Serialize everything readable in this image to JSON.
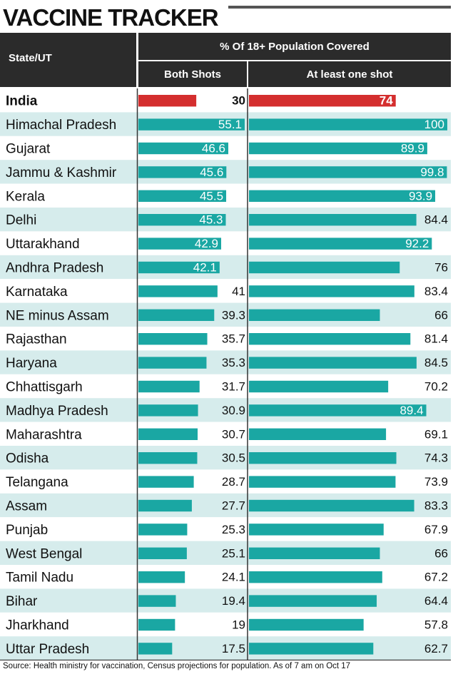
{
  "chart_data": {
    "type": "bar",
    "title": "VACCINE TRACKER",
    "row_header": "State/UT",
    "group_header": "% Of 18+ Population Covered",
    "series": [
      {
        "name": "Both Shots",
        "values": [
          30,
          55.1,
          46.6,
          45.6,
          45.5,
          45.3,
          42.9,
          42.1,
          41,
          39.3,
          35.7,
          35.3,
          31.7,
          30.9,
          30.7,
          30.5,
          28.7,
          27.7,
          25.3,
          25.1,
          24.1,
          19.4,
          19,
          17.5
        ]
      },
      {
        "name": "At least one shot",
        "values": [
          74,
          100,
          89.9,
          99.8,
          93.9,
          84.4,
          92.2,
          76,
          83.4,
          66,
          81.4,
          84.5,
          70.2,
          89.4,
          69.1,
          74.3,
          73.9,
          83.3,
          67.9,
          66,
          67.2,
          64.4,
          57.8,
          62.7
        ]
      }
    ],
    "categories": [
      "India",
      "Himachal Pradesh",
      "Gujarat",
      "Jammu & Kashmir",
      "Kerala",
      "Delhi",
      "Uttarakhand",
      "Andhra Pradesh",
      "Karnataka",
      "NE minus Assam",
      "Rajasthan",
      "Haryana",
      "Chhattisgarh",
      "Madhya Pradesh",
      "Maharashtra",
      "Odisha",
      "Telangana",
      "Assam",
      "Punjab",
      "West Bengal",
      "Tamil Nadu",
      "Bihar",
      "Jharkhand",
      "Uttar Pradesh"
    ],
    "label_inside": {
      "both": [
        false,
        true,
        true,
        true,
        true,
        true,
        true,
        true,
        false,
        false,
        false,
        false,
        false,
        false,
        false,
        false,
        false,
        false,
        false,
        false,
        false,
        false,
        false,
        false
      ],
      "one": [
        true,
        true,
        true,
        true,
        true,
        false,
        true,
        false,
        false,
        false,
        false,
        false,
        false,
        true,
        false,
        false,
        false,
        false,
        false,
        false,
        false,
        false,
        false,
        false
      ]
    },
    "highlight": "India",
    "colors": {
      "bar": "#1aa7a3",
      "highlight_bar": "#d42e2e",
      "row_stripe": "#d6ecec",
      "row_plain": "#ffffff",
      "header_bg": "#2b2b2b",
      "label_inside": "#ffffff",
      "label_outside": "#111111"
    }
  },
  "source": "Source: Health ministry for vaccination, Census projections for population. As of 7 am on Oct 17"
}
